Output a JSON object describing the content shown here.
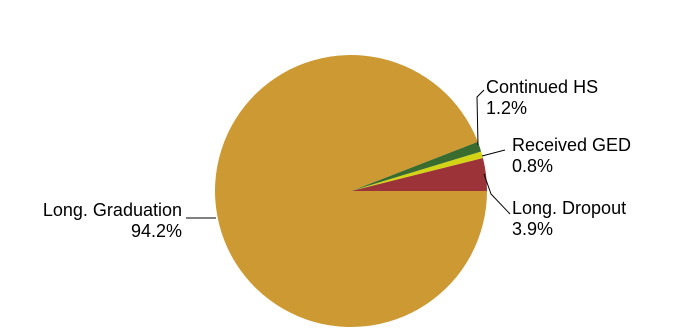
{
  "chart_data": {
    "type": "pie",
    "title": "",
    "slices": [
      {
        "label": "Long. Dropout",
        "value": 3.9,
        "display": "3.9%",
        "color": "#9c3338"
      },
      {
        "label": "Received GED",
        "value": 0.8,
        "display": "0.8%",
        "color": "#d4d416"
      },
      {
        "label": "Continued HS",
        "value": 1.2,
        "display": "1.2%",
        "color": "#3a6b2f"
      },
      {
        "label": "Long. Graduation",
        "value": 94.2,
        "display": "94.2%",
        "color": "#cc9933"
      }
    ],
    "start_angle_deg": 0,
    "direction": "counterclockwise",
    "label_style": "callouts with leader lines"
  }
}
